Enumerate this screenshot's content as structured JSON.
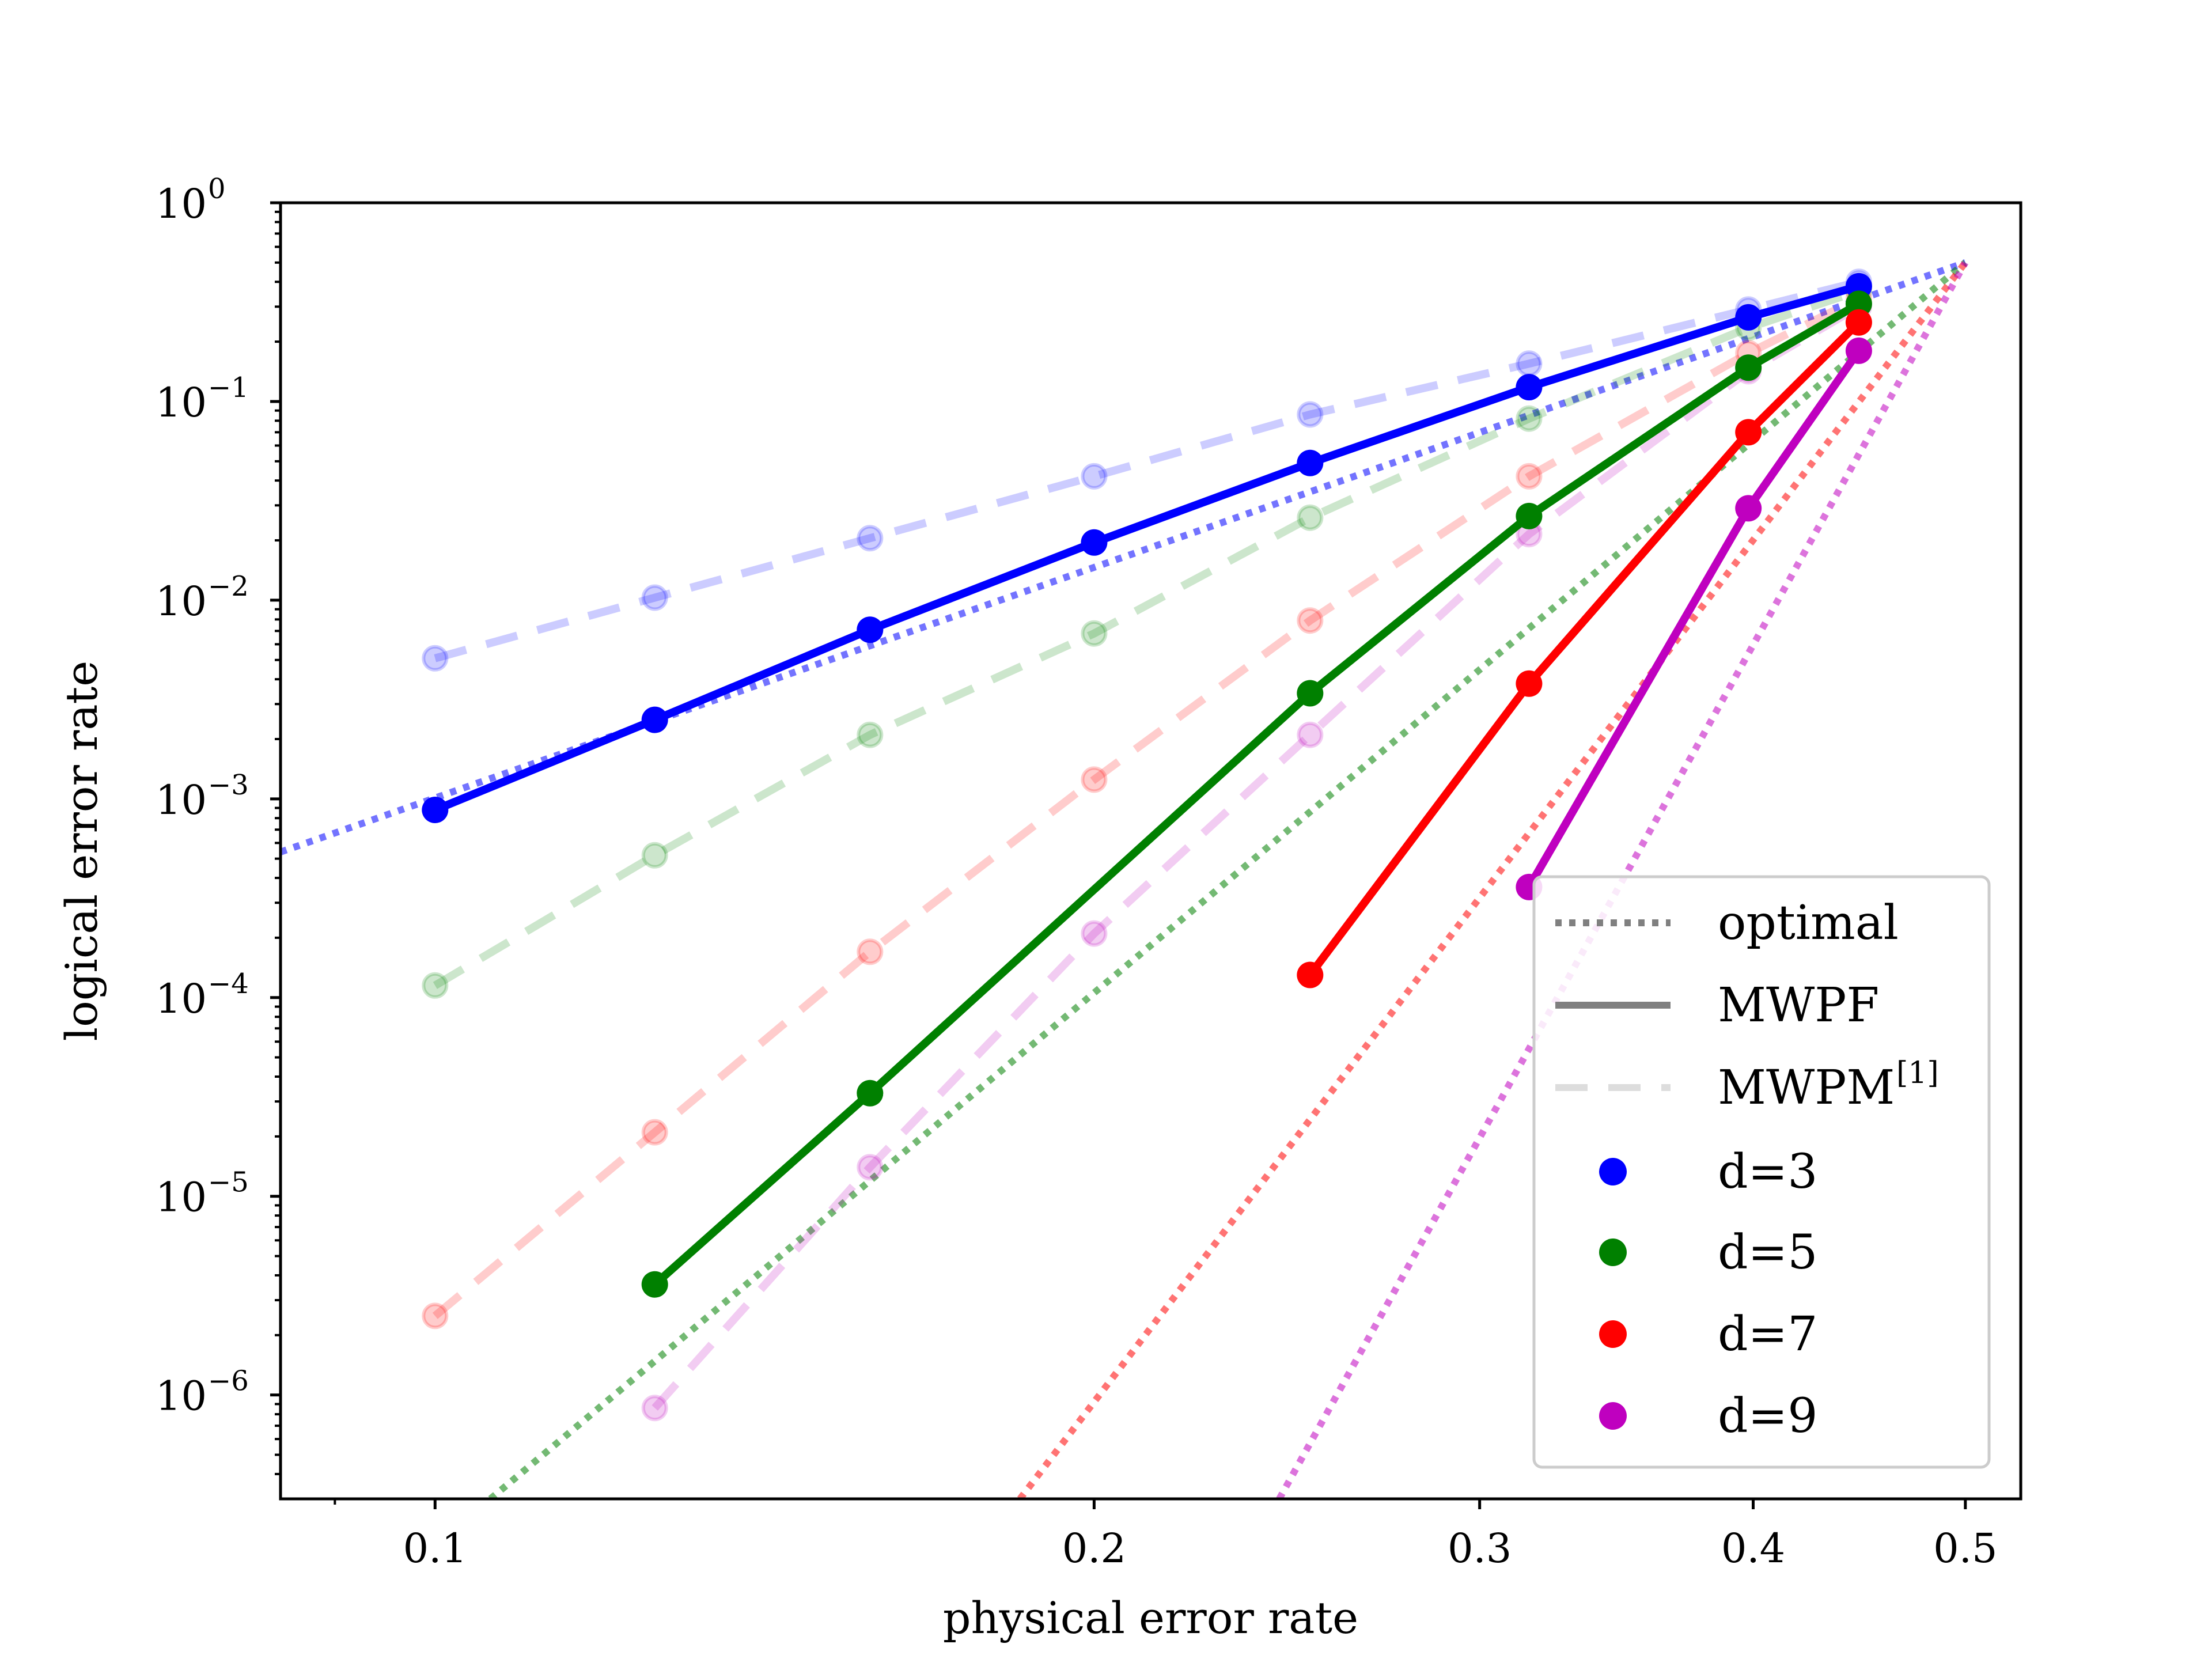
{
  "chart_data": {
    "type": "line",
    "xlabel": "physical error rate",
    "ylabel": "logical error rate",
    "x_scale": "log",
    "y_scale": "log",
    "xlim": [
      0.085,
      0.53
    ],
    "ylim": [
      3e-07,
      1.0
    ],
    "xticks": [
      {
        "value": 0.1,
        "label": "0.1"
      },
      {
        "value": 0.2,
        "label": "0.2"
      },
      {
        "value": 0.3,
        "label": "0.3"
      },
      {
        "value": 0.4,
        "label": "0.4"
      },
      {
        "value": 0.5,
        "label": "0.5"
      }
    ],
    "yticks": [
      {
        "value": 1,
        "base": "10",
        "exp": "0"
      },
      {
        "value": 0.1,
        "base": "10",
        "exp": "−1"
      },
      {
        "value": 0.01,
        "base": "10",
        "exp": "−2"
      },
      {
        "value": 0.001,
        "base": "10",
        "exp": "−3"
      },
      {
        "value": 0.0001,
        "base": "10",
        "exp": "−4"
      },
      {
        "value": 1e-05,
        "base": "10",
        "exp": "−5"
      },
      {
        "value": 1e-06,
        "base": "10",
        "exp": "−6"
      }
    ],
    "grid": false,
    "legend_position": "lower-right",
    "legend": [
      {
        "kind": "line",
        "style": "dotted",
        "label": "optimal"
      },
      {
        "kind": "line",
        "style": "solid",
        "label": "MWPF"
      },
      {
        "kind": "line",
        "style": "dashed",
        "label": "MWPM",
        "superscript": "[1]"
      },
      {
        "kind": "marker",
        "color": "#0000ff",
        "label": "d=3"
      },
      {
        "kind": "marker",
        "color": "#008000",
        "label": "d=5"
      },
      {
        "kind": "marker",
        "color": "#ff0000",
        "label": "d=7"
      },
      {
        "kind": "marker",
        "color": "#bf00bf",
        "label": "d=9"
      }
    ],
    "series": [
      {
        "d": 3,
        "color": "#0000ff",
        "decoder": "MWPF",
        "x": [
          0.1,
          0.126,
          0.158,
          0.2,
          0.251,
          0.316,
          0.398,
          0.447
        ],
        "y": [
          0.00088,
          0.0025,
          0.0071,
          0.0195,
          0.049,
          0.118,
          0.265,
          0.38
        ]
      },
      {
        "d": 5,
        "color": "#008000",
        "decoder": "MWPF",
        "x": [
          0.126,
          0.158,
          0.251,
          0.316,
          0.398,
          0.447
        ],
        "y": [
          3.6e-06,
          3.3e-05,
          0.0034,
          0.0265,
          0.148,
          0.31
        ]
      },
      {
        "d": 7,
        "color": "#ff0000",
        "decoder": "MWPF",
        "x": [
          0.251,
          0.316,
          0.398,
          0.447
        ],
        "y": [
          0.00013,
          0.0038,
          0.07,
          0.25
        ]
      },
      {
        "d": 9,
        "color": "#bf00bf",
        "decoder": "MWPF",
        "x": [
          0.316,
          0.398,
          0.447
        ],
        "y": [
          0.00036,
          0.029,
          0.18
        ]
      },
      {
        "d": 3,
        "color": "#0000ff",
        "decoder": "MWPM",
        "x": [
          0.1,
          0.126,
          0.158,
          0.2,
          0.251,
          0.316,
          0.398,
          0.447
        ],
        "y": [
          0.0051,
          0.0103,
          0.0205,
          0.042,
          0.086,
          0.155,
          0.29,
          0.4
        ]
      },
      {
        "d": 5,
        "color": "#008000",
        "decoder": "MWPM",
        "x": [
          0.1,
          0.126,
          0.158,
          0.2,
          0.251,
          0.316,
          0.398,
          0.447
        ],
        "y": [
          0.000115,
          0.00052,
          0.0021,
          0.0068,
          0.026,
          0.082,
          0.235,
          0.36
        ]
      },
      {
        "d": 7,
        "color": "#ff0000",
        "decoder": "MWPM",
        "x": [
          0.1,
          0.126,
          0.158,
          0.2,
          0.251,
          0.316,
          0.398,
          0.447
        ],
        "y": [
          2.5e-06,
          2.1e-05,
          0.00017,
          0.00125,
          0.0079,
          0.042,
          0.175,
          0.33
        ]
      },
      {
        "d": 9,
        "color": "#bf00bf",
        "decoder": "MWPM",
        "x": [
          0.126,
          0.158,
          0.2,
          0.251,
          0.316,
          0.398,
          0.447
        ],
        "y": [
          8.6e-07,
          1.4e-05,
          0.00021,
          0.0021,
          0.0215,
          0.142,
          0.3
        ]
      },
      {
        "d": 3,
        "color": "#0000ff",
        "decoder": "optimal",
        "x": [
          0.085,
          0.5
        ],
        "y": [
          0.00054,
          0.5
        ]
      },
      {
        "d": 5,
        "color": "#008000",
        "decoder": "optimal",
        "x": [
          0.106,
          0.5
        ],
        "y": [
          3e-07,
          0.5
        ]
      },
      {
        "d": 7,
        "color": "#ff0000",
        "decoder": "optimal",
        "x": [
          0.185,
          0.5
        ],
        "y": [
          3e-07,
          0.5
        ]
      },
      {
        "d": 9,
        "color": "#bf00bf",
        "decoder": "optimal",
        "x": [
          0.243,
          0.5
        ],
        "y": [
          3e-07,
          0.5
        ]
      }
    ]
  }
}
